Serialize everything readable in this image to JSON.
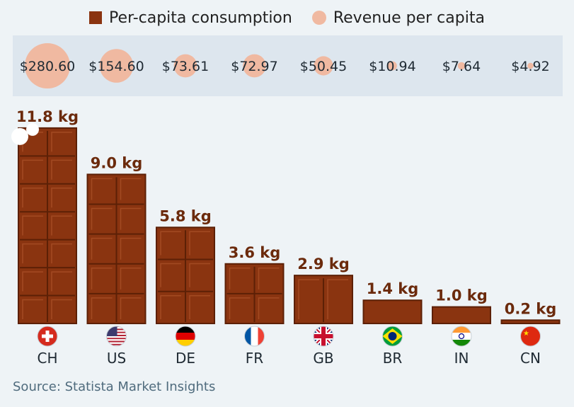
{
  "legend": {
    "consumption_label": "Per-capita consumption",
    "revenue_label": "Revenue per capita"
  },
  "colors": {
    "bar": "#8a3410",
    "bar_line": "#5c2006",
    "bubble": "#f0b9a1",
    "band": "#dde6ee"
  },
  "chart_data": {
    "type": "bar",
    "categories": [
      "CH",
      "US",
      "DE",
      "FR",
      "GB",
      "BR",
      "IN",
      "CN"
    ],
    "series": [
      {
        "name": "Per-capita consumption",
        "unit": "kg",
        "values": [
          11.8,
          9.0,
          5.8,
          3.6,
          2.9,
          1.4,
          1.0,
          0.2
        ],
        "labels": [
          "11.8 kg",
          "9.0 kg",
          "5.8 kg",
          "3.6 kg",
          "2.9 kg",
          "1.4 kg",
          "1.0 kg",
          "0.2 kg"
        ]
      },
      {
        "name": "Revenue per capita",
        "unit": "USD",
        "values": [
          280.6,
          154.6,
          73.61,
          72.97,
          50.45,
          10.94,
          7.64,
          4.92
        ],
        "labels": [
          "$280.60",
          "$154.60",
          "$73.61",
          "$72.97",
          "$50.45",
          "$10.94",
          "$7.64",
          "$4.92"
        ]
      }
    ],
    "flags": [
      "flag-ch-icon",
      "flag-us-icon",
      "flag-de-icon",
      "flag-fr-icon",
      "flag-gb-icon",
      "flag-br-icon",
      "flag-in-icon",
      "flag-cn-icon"
    ]
  },
  "source": "Source: Statista Market Insights"
}
